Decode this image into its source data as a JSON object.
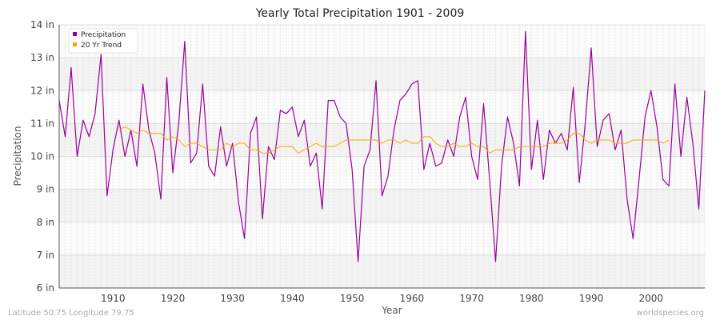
{
  "chart_data": {
    "type": "line",
    "title": "Yearly Total Precipitation 1901 - 2009",
    "xlabel": "Year",
    "ylabel": "Precipitation",
    "xlim": [
      1901,
      2009
    ],
    "ylim": [
      6,
      14
    ],
    "x_ticks": [
      {
        "value": 1910,
        "label": "1910"
      },
      {
        "value": 1920,
        "label": "1920"
      },
      {
        "value": 1930,
        "label": "1930"
      },
      {
        "value": 1940,
        "label": "1940"
      },
      {
        "value": 1950,
        "label": "1950"
      },
      {
        "value": 1960,
        "label": "1960"
      },
      {
        "value": 1970,
        "label": "1970"
      },
      {
        "value": 1980,
        "label": "1980"
      },
      {
        "value": 1990,
        "label": "1990"
      },
      {
        "value": 2000,
        "label": "2000"
      }
    ],
    "y_ticks": [
      {
        "value": 6,
        "label": "6 in"
      },
      {
        "value": 7,
        "label": "7 in"
      },
      {
        "value": 8,
        "label": "8 in"
      },
      {
        "value": 9,
        "label": "9 in"
      },
      {
        "value": 10,
        "label": "10 in"
      },
      {
        "value": 11,
        "label": "11 in"
      },
      {
        "value": 12,
        "label": "12 in"
      },
      {
        "value": 13,
        "label": "13 in"
      },
      {
        "value": 14,
        "label": "14 in"
      }
    ],
    "legend_position": "top-left",
    "series": [
      {
        "name": "Precipitation",
        "color": "#990099",
        "x_start": 1901,
        "values": [
          11.7,
          10.6,
          12.7,
          10.0,
          11.1,
          10.6,
          11.3,
          13.1,
          8.8,
          10.2,
          11.1,
          10.0,
          10.8,
          9.7,
          12.2,
          10.8,
          10.1,
          8.7,
          12.4,
          9.5,
          11.0,
          13.5,
          9.8,
          10.1,
          12.2,
          9.7,
          9.4,
          10.9,
          9.7,
          10.4,
          8.6,
          7.5,
          10.7,
          11.2,
          8.1,
          10.3,
          9.9,
          11.4,
          11.3,
          11.5,
          10.6,
          11.1,
          9.7,
          10.1,
          8.4,
          11.7,
          11.7,
          11.2,
          11.0,
          9.6,
          6.8,
          9.7,
          10.2,
          12.3,
          8.8,
          9.4,
          10.8,
          11.7,
          11.9,
          12.2,
          12.3,
          9.6,
          10.4,
          9.7,
          9.8,
          10.5,
          10.0,
          11.2,
          11.8,
          10.0,
          9.3,
          11.6,
          9.3,
          6.8,
          9.7,
          11.2,
          10.4,
          9.1,
          13.8,
          9.6,
          11.1,
          9.3,
          10.8,
          10.4,
          10.7,
          10.2,
          12.1,
          9.2,
          11.0,
          13.3,
          10.3,
          11.1,
          11.3,
          10.2,
          10.8,
          8.7,
          7.5,
          9.3,
          11.2,
          12.0,
          10.9,
          9.3,
          9.1,
          12.2,
          10.0,
          11.8,
          10.4,
          8.4,
          12.0
        ]
      },
      {
        "name": "20 Yr Trend",
        "color": "#ffa500",
        "x_start": 1911,
        "values": [
          10.8,
          10.9,
          10.8,
          10.7,
          10.8,
          10.7,
          10.7,
          10.7,
          10.5,
          10.6,
          10.5,
          10.3,
          10.4,
          10.4,
          10.3,
          10.2,
          10.2,
          10.2,
          10.4,
          10.3,
          10.4,
          10.4,
          10.2,
          10.2,
          10.1,
          10.1,
          10.2,
          10.3,
          10.3,
          10.3,
          10.1,
          10.2,
          10.3,
          10.4,
          10.3,
          10.3,
          10.3,
          10.4,
          10.5,
          10.5,
          10.5,
          10.5,
          10.5,
          10.5,
          10.4,
          10.5,
          10.5,
          10.4,
          10.5,
          10.4,
          10.4,
          10.6,
          10.6,
          10.4,
          10.3,
          10.3,
          10.4,
          10.3,
          10.3,
          10.4,
          10.3,
          10.3,
          10.1,
          10.2,
          10.2,
          10.2,
          10.2,
          10.3,
          10.3,
          10.3,
          10.3,
          10.3,
          10.4,
          10.4,
          10.4,
          10.5,
          10.7,
          10.7,
          10.5,
          10.4,
          10.5,
          10.5,
          10.5,
          10.4,
          10.4,
          10.4,
          10.5,
          10.5,
          10.5,
          10.5,
          10.5,
          10.4,
          10.5
        ]
      }
    ]
  },
  "footer": {
    "left": "Latitude 50.75 Longitude 79.75",
    "right": "worldspecies.org"
  }
}
